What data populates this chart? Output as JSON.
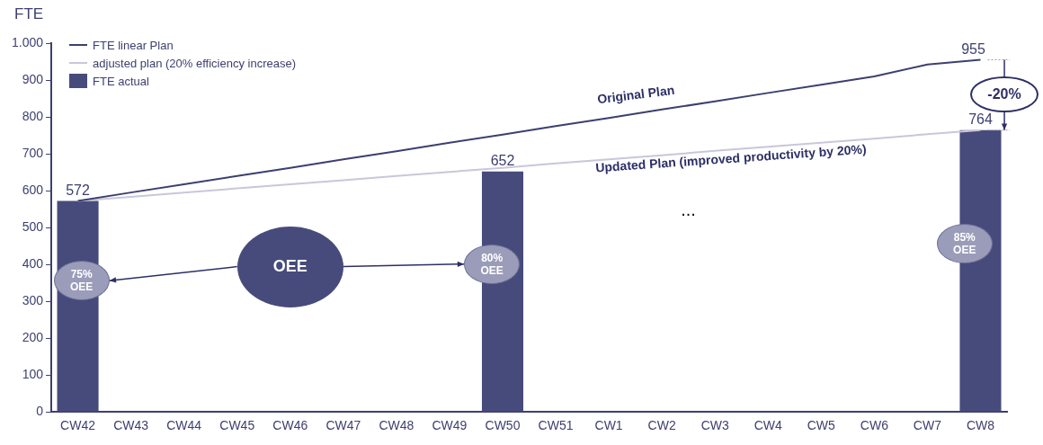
{
  "chart_data": {
    "type": "bar",
    "ylabel": "FTE",
    "categories": [
      "CW42",
      "CW43",
      "CW44",
      "CW45",
      "CW46",
      "CW47",
      "CW48",
      "CW49",
      "CW50",
      "CW51",
      "CW1",
      "CW2",
      "CW3",
      "CW4",
      "CW5",
      "CW6",
      "CW7",
      "CW8"
    ],
    "series": [
      {
        "name": "FTE linear Plan",
        "type": "line",
        "color": "#3d3f6e",
        "values": [
          572,
          595,
          617,
          640,
          662,
          685,
          707,
          730,
          752,
          775,
          797,
          820,
          842,
          865,
          887,
          910,
          942,
          955
        ]
      },
      {
        "name": "adjusted plan (20% efficiency increase)",
        "type": "line",
        "color": "#c9c7da",
        "values": [
          572,
          583,
          595,
          606,
          617,
          628,
          640,
          651,
          662,
          674,
          685,
          696,
          708,
          719,
          730,
          741,
          753,
          764
        ]
      },
      {
        "name": "FTE actual",
        "color": "#474b7b",
        "values": [
          572,
          null,
          null,
          null,
          null,
          null,
          null,
          null,
          652,
          null,
          null,
          null,
          null,
          null,
          null,
          null,
          null,
          764
        ],
        "value_labels": [
          "572",
          null,
          null,
          null,
          null,
          null,
          null,
          null,
          "652",
          null,
          null,
          null,
          null,
          null,
          null,
          null,
          null,
          "764"
        ]
      }
    ],
    "ylim": [
      0,
      1000
    ],
    "yticks": [
      0,
      100,
      200,
      300,
      400,
      500,
      600,
      700,
      800,
      900,
      {
        "value": 1000,
        "label": "1.000"
      }
    ],
    "grid": false,
    "legend": "top left",
    "marker": "none",
    "line_style": "solid",
    "annotations": [
      "Original Plan",
      "Updated Plan (improved productivity  by 20%)",
      {
        "text": "955",
        "x": "CW8",
        "y": 955
      },
      "-20%",
      "OEE",
      "75% OEE",
      "80% OEE",
      "85% OEE",
      "..."
    ]
  }
}
